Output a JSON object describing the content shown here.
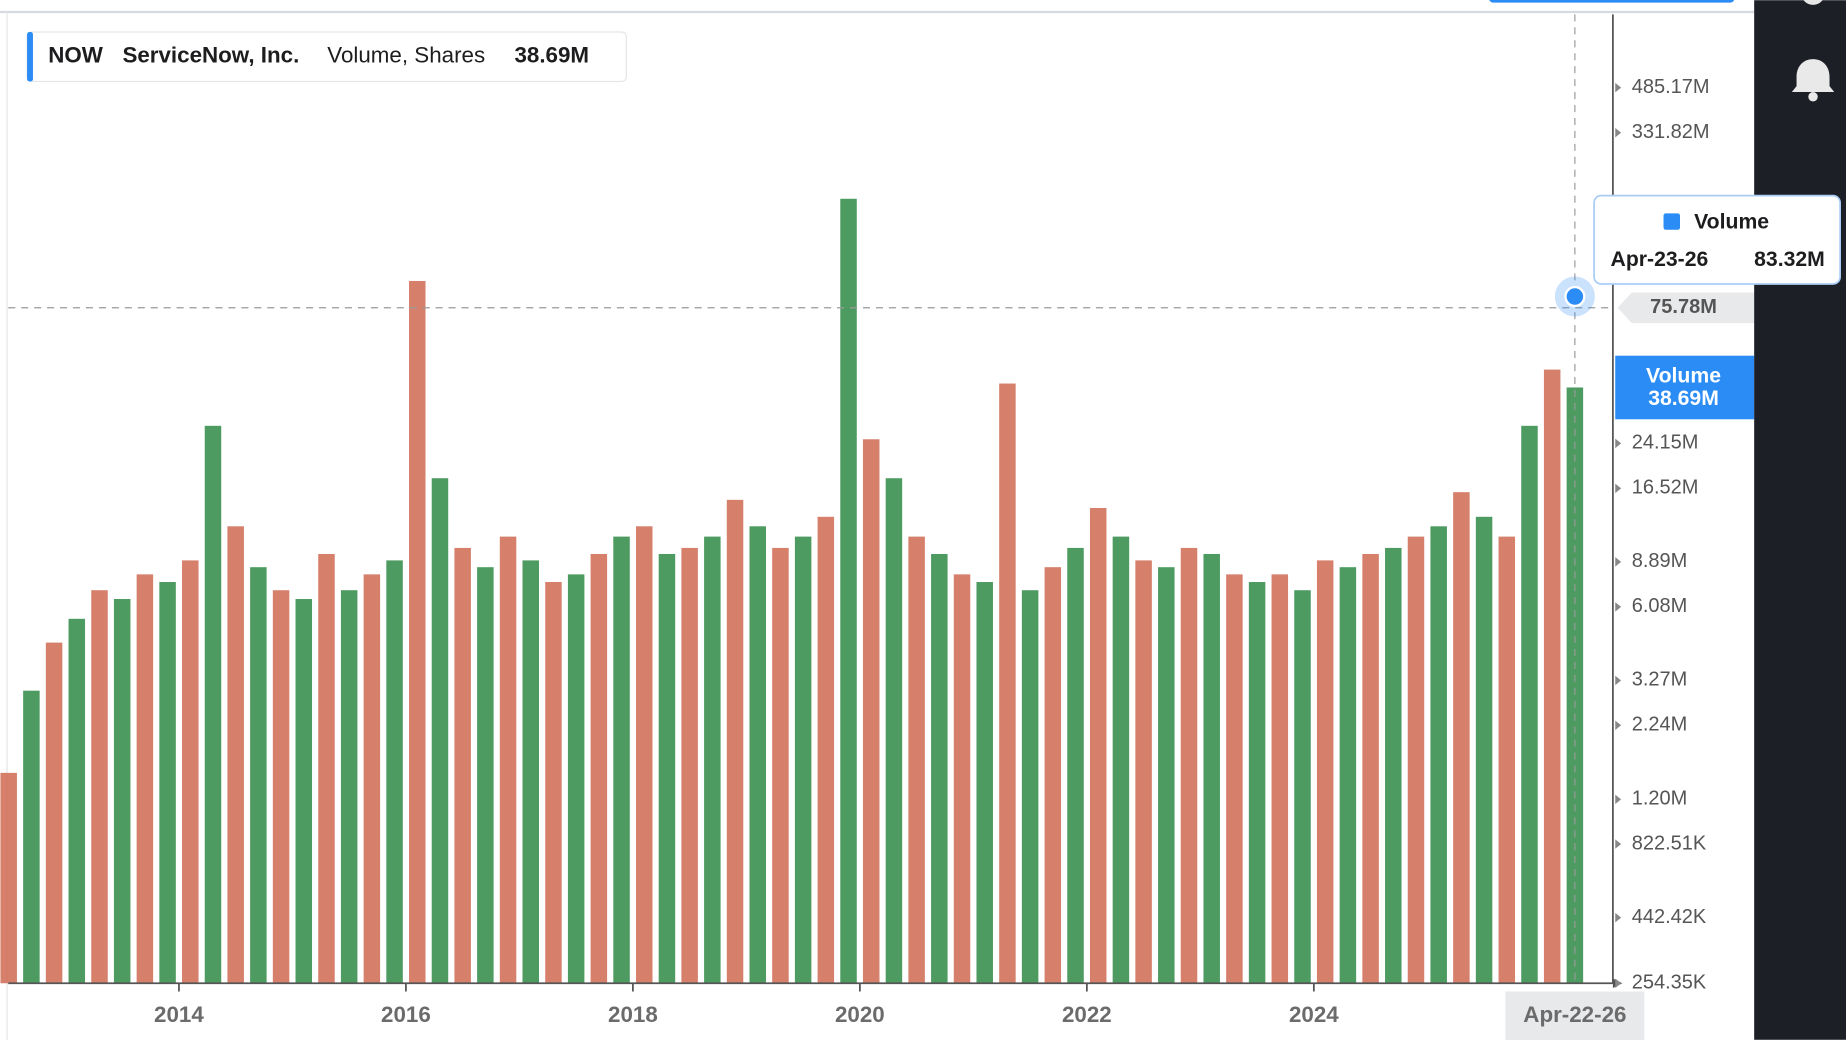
{
  "chart_data": {
    "type": "bar",
    "symbol": "NOW",
    "title": "ServiceNow, Inc.",
    "subtitle": "Volume, Shares",
    "last_value": 38690000,
    "last_value_label": "38.69M",
    "log_scale": true,
    "bar_colors": [
      "#cf6a52",
      "#2f8a47"
    ],
    "x": [
      2012.5,
      2012.7,
      2012.9,
      2013.1,
      2013.3,
      2013.5,
      2013.7,
      2013.9,
      2014.1,
      2014.3,
      2014.5,
      2014.7,
      2014.9,
      2015.1,
      2015.3,
      2015.5,
      2015.7,
      2015.9,
      2016.1,
      2016.3,
      2016.5,
      2016.7,
      2016.9,
      2017.1,
      2017.3,
      2017.5,
      2017.7,
      2017.9,
      2018.1,
      2018.3,
      2018.5,
      2018.7,
      2018.9,
      2019.1,
      2019.3,
      2019.5,
      2019.7,
      2019.9,
      2020.1,
      2020.3,
      2020.5,
      2020.7,
      2020.9,
      2021.1,
      2021.3,
      2021.5,
      2021.7,
      2021.9,
      2022.1,
      2022.3,
      2022.5,
      2022.7,
      2022.9,
      2023.1,
      2023.3,
      2023.5,
      2023.7,
      2023.9,
      2024.1,
      2024.3,
      2024.5,
      2024.7,
      2024.9,
      2025.1,
      2025.3,
      2025.5,
      2025.7,
      2025.9,
      2026.1,
      2026.3
    ],
    "series": [
      {
        "name": "Volume",
        "color": "#2a8cf4",
        "values": [
          1500000,
          3000000,
          4500000,
          5500000,
          7000000,
          6500000,
          8000000,
          7500000,
          9000000,
          28000000,
          12000000,
          8500000,
          7000000,
          6500000,
          9500000,
          7000000,
          8000000,
          9000000,
          95000000,
          18000000,
          10000000,
          8500000,
          11000000,
          9000000,
          7500000,
          8000000,
          9500000,
          11000000,
          12000000,
          9500000,
          10000000,
          11000000,
          15000000,
          12000000,
          10000000,
          11000000,
          13000000,
          190000000,
          25000000,
          18000000,
          11000000,
          9500000,
          8000000,
          7500000,
          40000000,
          7000000,
          8500000,
          10000000,
          14000000,
          11000000,
          9000000,
          8500000,
          10000000,
          9500000,
          8000000,
          7500000,
          8000000,
          7000000,
          9000000,
          8500000,
          9500000,
          10000000,
          11000000,
          12000000,
          16000000,
          13000000,
          11000000,
          28000000,
          45000000,
          38690000
        ]
      }
    ],
    "xlim": [
      2012.496,
      2026.635
    ],
    "xticks": [
      2014,
      2016,
      2018,
      2020,
      2022,
      2024
    ],
    "ylim": [
      254350,
      900000000
    ],
    "yticks": [
      {
        "value": 254350,
        "label": "254.35K"
      },
      {
        "value": 442420,
        "label": "442.42K"
      },
      {
        "value": 822510,
        "label": "822.51K"
      },
      {
        "value": 1200000,
        "label": "1.20M"
      },
      {
        "value": 2240000,
        "label": "2.24M"
      },
      {
        "value": 3270000,
        "label": "3.27M"
      },
      {
        "value": 6080000,
        "label": "6.08M"
      },
      {
        "value": 8890000,
        "label": "8.89M"
      },
      {
        "value": 16520000,
        "label": "16.52M"
      },
      {
        "value": 24150000,
        "label": "24.15M"
      },
      {
        "value": 331820000,
        "label": "331.82M"
      },
      {
        "value": 485170000,
        "label": "485.17M"
      }
    ],
    "crosshair": {
      "x": 2026.3,
      "x_label": "Apr-22-26",
      "y_value": 75780000,
      "y_label": "75.78M"
    },
    "tooltip": {
      "series": "Volume",
      "date": "Apr-23-26",
      "value": 83320000,
      "value_label": "83.32M"
    }
  }
}
